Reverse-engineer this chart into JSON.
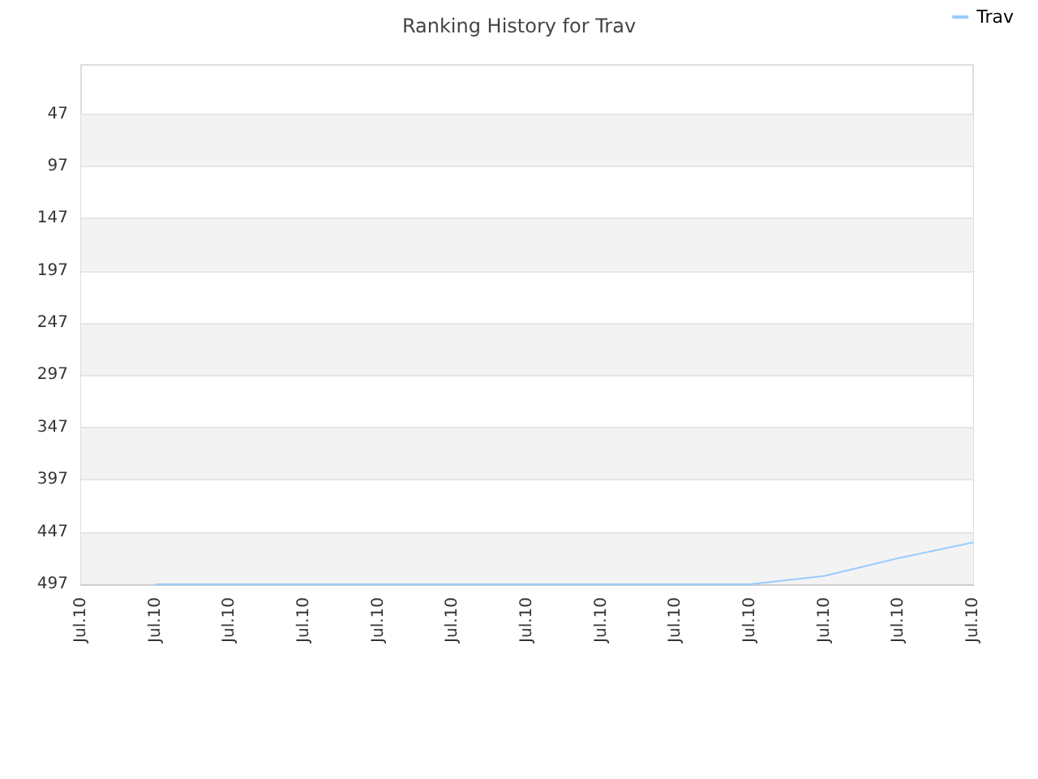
{
  "chart_data": {
    "type": "line",
    "title": "Ranking History for Trav",
    "categories": [
      "Jul.10",
      "Jul.10",
      "Jul.10",
      "Jul.10",
      "Jul.10",
      "Jul.10",
      "Jul.10",
      "Jul.10",
      "Jul.10",
      "Jul.10",
      "Jul.10",
      "Jul.10",
      "Jul.10"
    ],
    "series": [
      {
        "name": "Trav",
        "color": "#99ccff",
        "values": [
          null,
          497,
          497,
          497,
          497,
          497,
          497,
          497,
          497,
          497,
          489,
          472,
          457
        ]
      }
    ],
    "ylim": [
      497,
      0
    ],
    "yticks": [
      47,
      97,
      147,
      197,
      247,
      297,
      347,
      397,
      447,
      497
    ],
    "grid": "y",
    "legend": "top right",
    "marker": "none",
    "line_style": "solid"
  }
}
